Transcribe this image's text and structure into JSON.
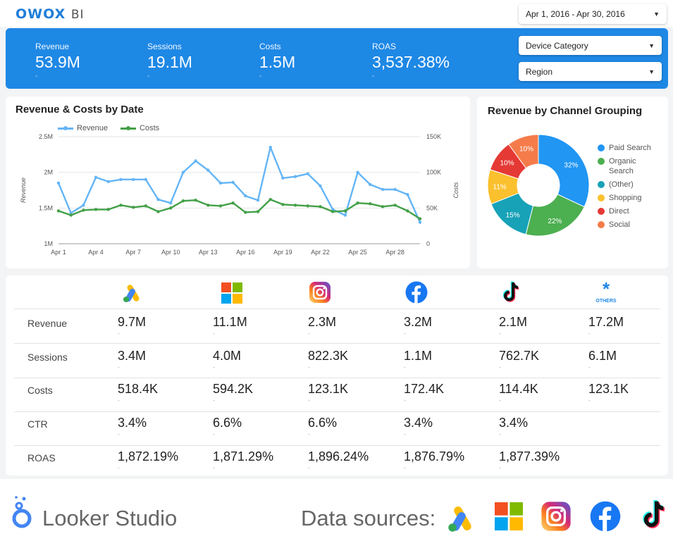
{
  "brand": {
    "logo": "OWOX",
    "logo_suffix": "BI"
  },
  "filters": {
    "date_range": "Apr 1, 2016 - Apr 30, 2016",
    "device": "Device Category",
    "region": "Region"
  },
  "kpis": [
    {
      "label": "Revenue",
      "value": "53.9M",
      "delta": "-"
    },
    {
      "label": "Sessions",
      "value": "19.1M",
      "delta": "-"
    },
    {
      "label": "Costs",
      "value": "1.5M",
      "delta": "-"
    },
    {
      "label": "ROAS",
      "value": "3,537.38%",
      "delta": "-"
    }
  ],
  "colors": {
    "accent": "#1e88e5",
    "revenue": "#64b5f6",
    "costs": "#43a047"
  },
  "chart_data": [
    {
      "type": "line",
      "title": "Revenue & Costs by Date",
      "xlabel": "",
      "ylabel": "Revenue",
      "y2label": "Costs",
      "x": [
        "Apr 1",
        "Apr 2",
        "Apr 3",
        "Apr 4",
        "Apr 5",
        "Apr 6",
        "Apr 7",
        "Apr 8",
        "Apr 9",
        "Apr 10",
        "Apr 11",
        "Apr 12",
        "Apr 13",
        "Apr 14",
        "Apr 15",
        "Apr 16",
        "Apr 17",
        "Apr 18",
        "Apr 19",
        "Apr 20",
        "Apr 21",
        "Apr 22",
        "Apr 23",
        "Apr 24",
        "Apr 25",
        "Apr 26",
        "Apr 27",
        "Apr 28",
        "Apr 29",
        "Apr 30"
      ],
      "xticks": [
        "Apr 1",
        "Apr 4",
        "Apr 7",
        "Apr 10",
        "Apr 13",
        "Apr 16",
        "Apr 19",
        "Apr 22",
        "Apr 25",
        "Apr 28"
      ],
      "ylim": [
        1000000,
        2500000
      ],
      "yticks": [
        "1M",
        "1.5M",
        "2M",
        "2.5M"
      ],
      "y2lim": [
        0,
        150000
      ],
      "y2ticks": [
        "0",
        "50K",
        "100K",
        "150K"
      ],
      "legend_position": "top-left",
      "series": [
        {
          "name": "Revenue",
          "axis": "left",
          "color": "#64b5f6",
          "values": [
            1850000,
            1430000,
            1540000,
            1930000,
            1870000,
            1900000,
            1900000,
            1900000,
            1620000,
            1570000,
            2000000,
            2160000,
            2030000,
            1850000,
            1860000,
            1670000,
            1610000,
            2350000,
            1920000,
            1940000,
            1980000,
            1810000,
            1480000,
            1400000,
            2000000,
            1830000,
            1760000,
            1760000,
            1690000,
            1300000
          ]
        },
        {
          "name": "Costs",
          "axis": "right",
          "color": "#43a047",
          "values": [
            46000,
            40000,
            47000,
            48000,
            48000,
            54000,
            51000,
            53000,
            45000,
            50000,
            60000,
            61000,
            54000,
            53000,
            57000,
            44000,
            45000,
            62000,
            55000,
            54000,
            53000,
            52000,
            45000,
            46000,
            57000,
            56000,
            52000,
            54000,
            46000,
            35000
          ]
        }
      ]
    },
    {
      "type": "pie",
      "title": "Revenue by Channel Grouping",
      "legend_position": "right",
      "slices": [
        {
          "label": "Paid Search",
          "value": 32,
          "display": "32%",
          "color": "#2196f3"
        },
        {
          "label": "Organic Search",
          "value": 22,
          "display": "22%",
          "color": "#4caf50"
        },
        {
          "label": "(Other)",
          "value": 15,
          "display": "15%",
          "color": "#17a2b8"
        },
        {
          "label": "Shopping",
          "value": 11,
          "display": "11%",
          "color": "#fbc02d"
        },
        {
          "label": "Direct",
          "value": 10,
          "display": "10%",
          "color": "#e53935"
        },
        {
          "label": "Social",
          "value": 10,
          "display": "10%",
          "color": "#f57c4a"
        }
      ]
    }
  ],
  "table": {
    "columns": [
      {
        "icon": "google-ads-icon"
      },
      {
        "icon": "microsoft-ads-icon"
      },
      {
        "icon": "instagram-icon"
      },
      {
        "icon": "facebook-icon"
      },
      {
        "icon": "tiktok-icon"
      },
      {
        "icon": "others-icon",
        "label": "OTHERS"
      }
    ],
    "rows": [
      {
        "label": "Revenue",
        "values": [
          "9.7M",
          "11.1M",
          "2.3M",
          "3.2M",
          "2.1M",
          "17.2M"
        ]
      },
      {
        "label": "Sessions",
        "values": [
          "3.4M",
          "4.0M",
          "822.3K",
          "1.1M",
          "762.7K",
          "6.1M"
        ]
      },
      {
        "label": "Costs",
        "values": [
          "518.4K",
          "594.2K",
          "123.1K",
          "172.4K",
          "114.4K",
          "123.1K"
        ]
      },
      {
        "label": "CTR",
        "values": [
          "3.4%",
          "6.6%",
          "6.6%",
          "3.4%",
          "3.4%",
          ""
        ]
      },
      {
        "label": "ROAS",
        "values": [
          "1,872.19%",
          "1,871.29%",
          "1,896.24%",
          "1,876.79%",
          "1,877.39%",
          ""
        ]
      }
    ],
    "sub": "-"
  },
  "footer": {
    "looker": "Looker Studio",
    "sources_label": "Data sources:",
    "source_icons": [
      "google-ads-icon",
      "microsoft-ads-icon",
      "instagram-icon",
      "facebook-icon",
      "tiktok-icon"
    ]
  }
}
